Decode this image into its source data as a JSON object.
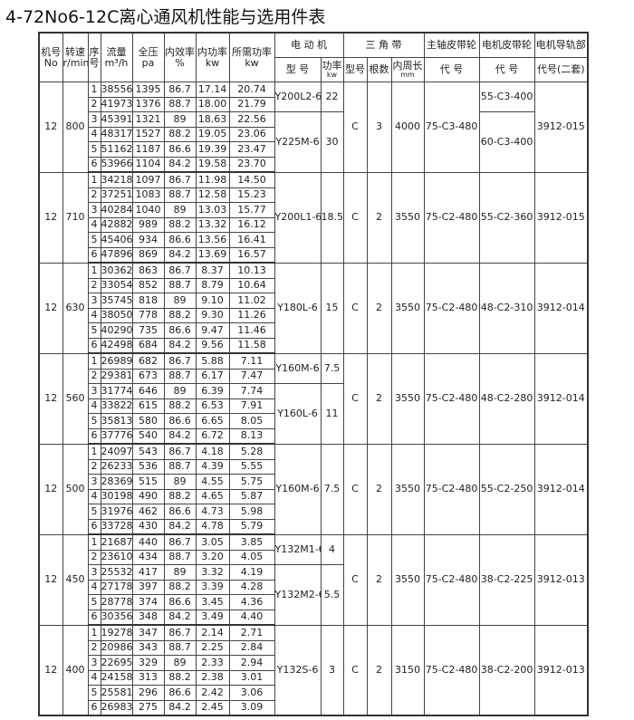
{
  "title": "4-72No6-12C离心通风机性能与选用件表",
  "headers": {
    "machine": [
      "机号",
      "No"
    ],
    "speed": [
      "转速",
      "r/min"
    ],
    "seq": [
      "序",
      "号"
    ],
    "flow": [
      "流量",
      "m³/h"
    ],
    "pressure": [
      "全压",
      "pa"
    ],
    "efficiency": [
      "内效率",
      "%"
    ],
    "internal_power": [
      "内功率",
      "kw"
    ],
    "required_power": [
      "所需功率",
      "kw"
    ],
    "motor": "电 动 机",
    "motor_model": "型 号",
    "motor_power": [
      "功率",
      "kw"
    ],
    "vbelt": "三 角 带",
    "vbelt_model": "型号",
    "vbelt_count": "根数",
    "vbelt_length": [
      "内周长",
      "mm"
    ],
    "spindle_pulley": "主轴皮带轮",
    "spindle_code": "代 号",
    "motor_pulley": "电机皮带轮",
    "motor_pulley_code": "代 号",
    "rail": "电机导轨部",
    "rail_code": "代号(二套)"
  },
  "blocks": [
    {
      "machine": "12",
      "speed": "800",
      "rows": [
        [
          "1",
          "38556",
          "1395",
          "86.7",
          "17.14",
          "20.74"
        ],
        [
          "2",
          "41973",
          "1376",
          "88.7",
          "18.00",
          "21.79"
        ],
        [
          "3",
          "45391",
          "1321",
          "89",
          "18.63",
          "22.56"
        ],
        [
          "4",
          "48317",
          "1527",
          "88.2",
          "19.05",
          "23.06"
        ],
        [
          "5",
          "51162",
          "1187",
          "86.6",
          "19.39",
          "23.47"
        ],
        [
          "6",
          "53966",
          "1104",
          "84.2",
          "19.58",
          "23.70"
        ]
      ],
      "motors": [
        {
          "model": "Y200L2-6",
          "power": "22",
          "span": 2
        },
        {
          "model": "Y225M-6",
          "power": "30",
          "span": 4
        }
      ],
      "belt_type": "C",
      "belt_count": "3",
      "belt_length": "4000",
      "spindle": "75-C3-480",
      "motor_pulleys": [
        {
          "code": "55-C3-400",
          "span": 2
        },
        {
          "code": "60-C3-400",
          "span": 4
        }
      ],
      "rail": "3912-015"
    },
    {
      "machine": "12",
      "speed": "710",
      "rows": [
        [
          "1",
          "34218",
          "1097",
          "86.7",
          "11.98",
          "14.50"
        ],
        [
          "2",
          "37251",
          "1083",
          "88.7",
          "12.58",
          "15.23"
        ],
        [
          "3",
          "40284",
          "1040",
          "89",
          "13.03",
          "15.77"
        ],
        [
          "4",
          "42882",
          "989",
          "88.2",
          "13.32",
          "16.12"
        ],
        [
          "5",
          "45406",
          "934",
          "86.6",
          "13.56",
          "16.41"
        ],
        [
          "6",
          "47896",
          "869",
          "84.2",
          "13.69",
          "16.57"
        ]
      ],
      "motors": [
        {
          "model": "Y200L1-6",
          "power": "18.5",
          "span": 6
        }
      ],
      "belt_type": "C",
      "belt_count": "2",
      "belt_length": "3550",
      "spindle": "75-C2-480",
      "motor_pulleys": [
        {
          "code": "55-C2-360",
          "span": 6
        }
      ],
      "rail": "3912-015"
    },
    {
      "machine": "12",
      "speed": "630",
      "rows": [
        [
          "1",
          "30362",
          "863",
          "86.7",
          "8.37",
          "10.13"
        ],
        [
          "2",
          "33054",
          "852",
          "88.7",
          "8.79",
          "10.64"
        ],
        [
          "3",
          "35745",
          "818",
          "89",
          "9.10",
          "11.02"
        ],
        [
          "4",
          "38050",
          "778",
          "88.2",
          "9.30",
          "11.26"
        ],
        [
          "5",
          "40290",
          "735",
          "86.6",
          "9.47",
          "11.46"
        ],
        [
          "6",
          "42498",
          "684",
          "84.2",
          "9.56",
          "11.58"
        ]
      ],
      "motors": [
        {
          "model": "Y180L-6",
          "power": "15",
          "span": 6
        }
      ],
      "belt_type": "C",
      "belt_count": "2",
      "belt_length": "3550",
      "spindle": "75-C2-480",
      "motor_pulleys": [
        {
          "code": "48-C2-310",
          "span": 6
        }
      ],
      "rail": "3912-014"
    },
    {
      "machine": "12",
      "speed": "560",
      "rows": [
        [
          "1",
          "26989",
          "682",
          "86.7",
          "5.88",
          "7.11"
        ],
        [
          "2",
          "29381",
          "673",
          "88.7",
          "6.17",
          "7.47"
        ],
        [
          "3",
          "31774",
          "646",
          "89",
          "6.39",
          "7.74"
        ],
        [
          "4",
          "33822",
          "615",
          "88.2",
          "6.53",
          "7.91"
        ],
        [
          "5",
          "35813",
          "580",
          "86.6",
          "6.65",
          "8.05"
        ],
        [
          "6",
          "37776",
          "540",
          "84.2",
          "6.72",
          "8.13"
        ]
      ],
      "motors": [
        {
          "model": "Y160M-6",
          "power": "7.5",
          "span": 2
        },
        {
          "model": "Y160L-6",
          "power": "11",
          "span": 4
        }
      ],
      "belt_type": "C",
      "belt_count": "2",
      "belt_length": "3550",
      "spindle": "75-C2-480",
      "motor_pulleys": [
        {
          "code": "48-C2-280",
          "span": 6
        }
      ],
      "rail": "3912-014"
    },
    {
      "machine": "12",
      "speed": "500",
      "rows": [
        [
          "1",
          "24097",
          "543",
          "86.7",
          "4.18",
          "5.28"
        ],
        [
          "2",
          "26233",
          "536",
          "88.7",
          "4.39",
          "5.55"
        ],
        [
          "3",
          "28369",
          "515",
          "89",
          "4.55",
          "5.75"
        ],
        [
          "4",
          "30198",
          "490",
          "88.2",
          "4.65",
          "5.87"
        ],
        [
          "5",
          "31976",
          "462",
          "86.6",
          "4.73",
          "5.98"
        ],
        [
          "6",
          "33728",
          "430",
          "84.2",
          "4.78",
          "5.79"
        ]
      ],
      "motors": [
        {
          "model": "Y160M-6",
          "power": "7.5",
          "span": 6
        }
      ],
      "belt_type": "C",
      "belt_count": "2",
      "belt_length": "3550",
      "spindle": "75-C2-480",
      "motor_pulleys": [
        {
          "code": "55-C2-250",
          "span": 6
        }
      ],
      "rail": "3912-014"
    },
    {
      "machine": "12",
      "speed": "450",
      "rows": [
        [
          "1",
          "21687",
          "440",
          "86.7",
          "3.05",
          "3.85"
        ],
        [
          "2",
          "23610",
          "434",
          "88.7",
          "3.20",
          "4.05"
        ],
        [
          "3",
          "25532",
          "417",
          "89",
          "3.32",
          "4.19"
        ],
        [
          "4",
          "27178",
          "397",
          "88.2",
          "3.39",
          "4.28"
        ],
        [
          "5",
          "28778",
          "374",
          "86.6",
          "3.45",
          "4.36"
        ],
        [
          "6",
          "30356",
          "348",
          "84.2",
          "3.49",
          "4.40"
        ]
      ],
      "motors": [
        {
          "model": "Y132M1-6",
          "power": "4",
          "span": 2
        },
        {
          "model": "Y132M2-6",
          "power": "5.5",
          "span": 4
        }
      ],
      "belt_type": "C",
      "belt_count": "2",
      "belt_length": "3550",
      "spindle": "75-C2-480",
      "motor_pulleys": [
        {
          "code": "38-C2-225",
          "span": 6
        }
      ],
      "rail": "3912-013"
    },
    {
      "machine": "12",
      "speed": "400",
      "rows": [
        [
          "1",
          "19278",
          "347",
          "86.7",
          "2.14",
          "2.71"
        ],
        [
          "2",
          "20986",
          "343",
          "88.7",
          "2.25",
          "2.84"
        ],
        [
          "3",
          "22695",
          "329",
          "89",
          "2.33",
          "2.94"
        ],
        [
          "4",
          "24158",
          "313",
          "88.2",
          "2.38",
          "3.01"
        ],
        [
          "5",
          "25581",
          "296",
          "86.6",
          "2.42",
          "3.06"
        ],
        [
          "6",
          "26983",
          "275",
          "84.2",
          "2.45",
          "3.09"
        ]
      ],
      "motors": [
        {
          "model": "Y132S-6",
          "power": "3",
          "span": 6
        }
      ],
      "belt_type": "C",
      "belt_count": "2",
      "belt_length": "3150",
      "spindle": "75-C2-480",
      "motor_pulleys": [
        {
          "code": "38-C2-200",
          "span": 6
        }
      ],
      "rail": "3912-013"
    }
  ]
}
